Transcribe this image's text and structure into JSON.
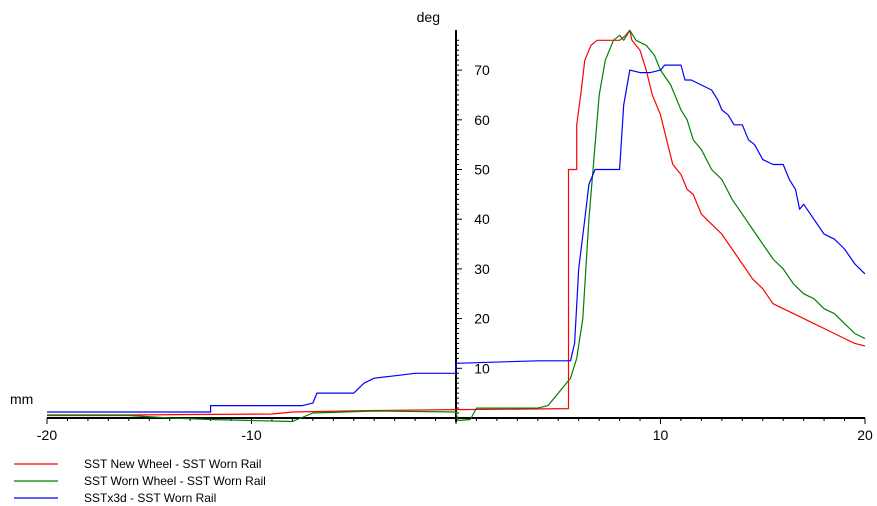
{
  "chart_data": {
    "type": "line",
    "xlabel": "mm",
    "ylabel": "deg",
    "xlim": [
      -20,
      20
    ],
    "ylim": [
      -1,
      79
    ],
    "x_ticks": [
      "-20",
      "-10",
      "10",
      "20"
    ],
    "y_ticks": [
      "10",
      "20",
      "30",
      "40",
      "50",
      "60",
      "70"
    ],
    "grid": false,
    "legend_position": "bottom-left",
    "series": [
      {
        "name": "SST New Wheel - SST Worn Rail",
        "color": "#ff0000",
        "points": [
          [
            -20,
            0.6
          ],
          [
            -16,
            0.6
          ],
          [
            -13,
            0.7
          ],
          [
            -9,
            0.8
          ],
          [
            -8,
            1.2
          ],
          [
            -4,
            1.5
          ],
          [
            0,
            1.7
          ],
          [
            3,
            1.8
          ],
          [
            5.5,
            1.9
          ],
          [
            5.5,
            50
          ],
          [
            5.9,
            50
          ],
          [
            5.9,
            59
          ],
          [
            6.1,
            65
          ],
          [
            6.3,
            72
          ],
          [
            6.6,
            75
          ],
          [
            6.9,
            76
          ],
          [
            7.5,
            76
          ],
          [
            8,
            76
          ],
          [
            8.3,
            77
          ],
          [
            8.5,
            78
          ],
          [
            8.6,
            76
          ],
          [
            9,
            74
          ],
          [
            9.3,
            70
          ],
          [
            9.6,
            65
          ],
          [
            10,
            61
          ],
          [
            10.3,
            56
          ],
          [
            10.6,
            51
          ],
          [
            11,
            49
          ],
          [
            11.3,
            46
          ],
          [
            11.6,
            45
          ],
          [
            12,
            41
          ],
          [
            12.5,
            39
          ],
          [
            13,
            37
          ],
          [
            13.5,
            34
          ],
          [
            14,
            31
          ],
          [
            14.5,
            28
          ],
          [
            15,
            26
          ],
          [
            15.5,
            23
          ],
          [
            16,
            22
          ],
          [
            16.5,
            21
          ],
          [
            17,
            20
          ],
          [
            17.5,
            19
          ],
          [
            18,
            18
          ],
          [
            18.5,
            17
          ],
          [
            19,
            16
          ],
          [
            19.5,
            15
          ],
          [
            20,
            14.5
          ]
        ]
      },
      {
        "name": "SST Worn Wheel - SST Worn Rail",
        "color": "#008000",
        "points": [
          [
            -20,
            0.5
          ],
          [
            -16,
            0.5
          ],
          [
            -14,
            0
          ],
          [
            -12,
            -0.3
          ],
          [
            -10,
            -0.5
          ],
          [
            -8,
            -0.7
          ],
          [
            -7,
            1
          ],
          [
            -4,
            1.4
          ],
          [
            0,
            1.2
          ],
          [
            0.1,
            -0.5
          ],
          [
            0.7,
            -0.3
          ],
          [
            1,
            2
          ],
          [
            2,
            2
          ],
          [
            4,
            2
          ],
          [
            4.5,
            2.5
          ],
          [
            5,
            5
          ],
          [
            5.6,
            8
          ],
          [
            5.9,
            12
          ],
          [
            6.2,
            20
          ],
          [
            6.5,
            40
          ],
          [
            6.8,
            55
          ],
          [
            7,
            65
          ],
          [
            7.3,
            72
          ],
          [
            7.7,
            76
          ],
          [
            8,
            77
          ],
          [
            8.2,
            76
          ],
          [
            8.5,
            78
          ],
          [
            8.8,
            76
          ],
          [
            9.3,
            75
          ],
          [
            9.7,
            73
          ],
          [
            10,
            70
          ],
          [
            10.5,
            67
          ],
          [
            11,
            62
          ],
          [
            11.3,
            60
          ],
          [
            11.6,
            56
          ],
          [
            12,
            54
          ],
          [
            12.5,
            50
          ],
          [
            13,
            48
          ],
          [
            13.5,
            44
          ],
          [
            14,
            41
          ],
          [
            14.5,
            38
          ],
          [
            15,
            35
          ],
          [
            15.5,
            32
          ],
          [
            16,
            30
          ],
          [
            16.5,
            27
          ],
          [
            17,
            25
          ],
          [
            17.5,
            24
          ],
          [
            18,
            22
          ],
          [
            18.5,
            21
          ],
          [
            19,
            19
          ],
          [
            19.5,
            17
          ],
          [
            20,
            16
          ]
        ]
      },
      {
        "name": "SSTx3d - SST Worn Rail",
        "color": "#0000ff",
        "points": [
          [
            -20,
            1.2
          ],
          [
            -12,
            1.2
          ],
          [
            -12,
            2.5
          ],
          [
            -7.5,
            2.5
          ],
          [
            -7,
            3
          ],
          [
            -6.8,
            5
          ],
          [
            -5,
            5
          ],
          [
            -4.5,
            7
          ],
          [
            -4,
            8
          ],
          [
            -3,
            8.5
          ],
          [
            -2,
            9
          ],
          [
            0,
            9
          ],
          [
            0,
            11
          ],
          [
            4,
            11.5
          ],
          [
            5.6,
            11.5
          ],
          [
            5.8,
            15
          ],
          [
            6,
            30
          ],
          [
            6.3,
            40
          ],
          [
            6.5,
            47
          ],
          [
            6.8,
            50
          ],
          [
            7.5,
            50
          ],
          [
            8,
            50
          ],
          [
            8.2,
            63
          ],
          [
            8.5,
            70
          ],
          [
            9,
            69.5
          ],
          [
            9.5,
            69.5
          ],
          [
            10,
            70
          ],
          [
            10.2,
            71
          ],
          [
            10.5,
            71
          ],
          [
            11,
            71
          ],
          [
            11.2,
            68
          ],
          [
            11.5,
            68
          ],
          [
            12,
            67
          ],
          [
            12.5,
            66
          ],
          [
            12.8,
            64
          ],
          [
            13,
            62
          ],
          [
            13.3,
            61
          ],
          [
            13.6,
            59
          ],
          [
            14,
            59
          ],
          [
            14.3,
            56
          ],
          [
            14.6,
            55
          ],
          [
            15,
            52
          ],
          [
            15.5,
            51
          ],
          [
            16,
            51
          ],
          [
            16.3,
            48
          ],
          [
            16.6,
            46
          ],
          [
            16.8,
            42
          ],
          [
            17,
            43
          ],
          [
            17.5,
            40
          ],
          [
            18,
            37
          ],
          [
            18.5,
            36
          ],
          [
            19,
            34
          ],
          [
            19.5,
            31
          ],
          [
            20,
            29
          ]
        ]
      }
    ]
  }
}
